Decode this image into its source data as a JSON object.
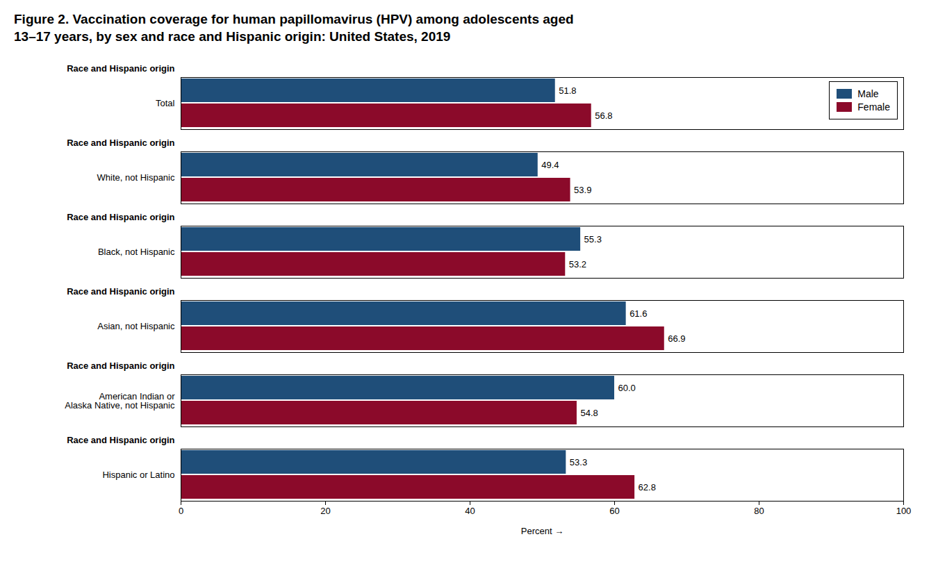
{
  "chart_data": {
    "type": "bar",
    "orientation": "horizontal",
    "title": "Figure 2. Vaccination coverage for human papillomavirus (HPV) among adolescents aged\n13–17 years, by sex and race and Hispanic origin: United States, 2019",
    "xlabel": "Percent",
    "annotations": [
      "Race and Hispanic origin"
    ],
    "categories": [
      "Total",
      "White, not Hispanic",
      "Black, not Hispanic",
      "Asian, not Hispanic",
      "American Indian or\nAlaska Native, not Hispanic",
      "Hispanic or Latino"
    ],
    "series": [
      {
        "name": "Male",
        "color": "#1F4E79",
        "values": [
          51.8,
          49.4,
          55.3,
          61.6,
          60.0,
          53.3
        ],
        "value_labels": [
          "51.8",
          "49.4",
          "55.3",
          "61.6",
          "60.0",
          "53.3"
        ]
      },
      {
        "name": "Female",
        "color": "#8B0A2A",
        "values": [
          56.8,
          53.9,
          53.2,
          66.9,
          54.8,
          62.8
        ],
        "value_labels": [
          "56.8",
          "53.9",
          "53.2",
          "66.9",
          "54.8",
          "62.8"
        ]
      }
    ],
    "xlim": [
      0,
      100
    ],
    "xticks": [
      0,
      20,
      40,
      60,
      80,
      100
    ],
    "data_labels": true,
    "legend": "upper right",
    "grid": false
  }
}
